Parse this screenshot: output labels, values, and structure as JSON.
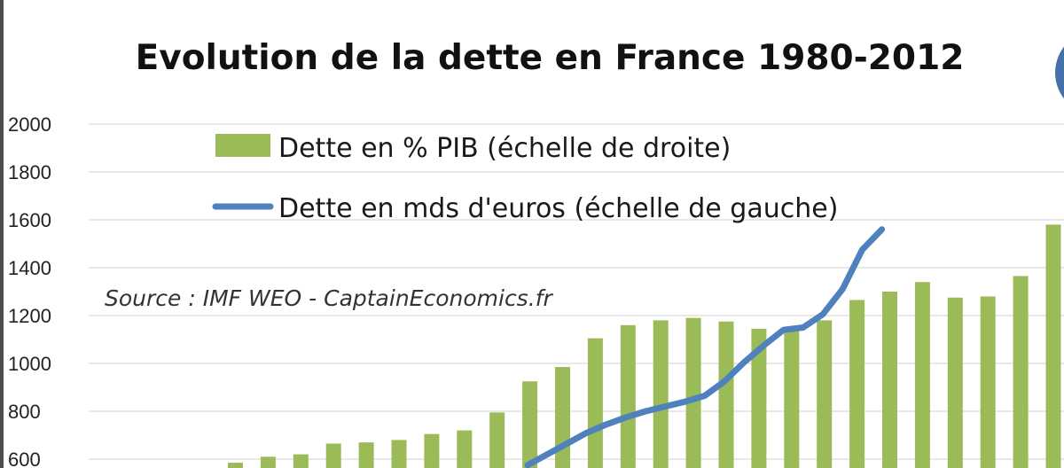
{
  "chart_data": {
    "type": "bar",
    "title": "Evolution de la dette en France 1980-2012",
    "source": "Source : IMF WEO - CaptainEconomics.fr",
    "ylim": [
      600,
      2000
    ],
    "yticks": [
      600,
      800,
      1000,
      1200,
      1400,
      1600,
      1800,
      2000
    ],
    "ytick_labels": [
      "600",
      "800",
      "1000",
      "1200",
      "1400",
      "1600",
      "1800",
      "2000"
    ],
    "series": [
      {
        "name": "Dette en % PIB (échelle de droite)",
        "kind": "bar",
        "color": "#9bbb59",
        "values": [
          585,
          610,
          620,
          665,
          670,
          680,
          705,
          720,
          795,
          925,
          985,
          1105,
          1160,
          1180,
          1190,
          1175,
          1145,
          1135,
          1180,
          1265,
          1300,
          1340,
          1275,
          1280,
          1365,
          1580
        ]
      },
      {
        "name": "Dette en mds d'euros (échelle de gauche)",
        "kind": "line",
        "color": "#4f81bd",
        "values": [
          null,
          null,
          null,
          null,
          null,
          null,
          null,
          null,
          null,
          575,
          620,
          665,
          710,
          745,
          775,
          800,
          820,
          840,
          865,
          925,
          1005,
          1075,
          1140,
          1150,
          1205,
          1310,
          1475,
          1560
        ]
      }
    ],
    "legend_position": "top"
  },
  "logo": {
    "color": "#4472a8"
  }
}
